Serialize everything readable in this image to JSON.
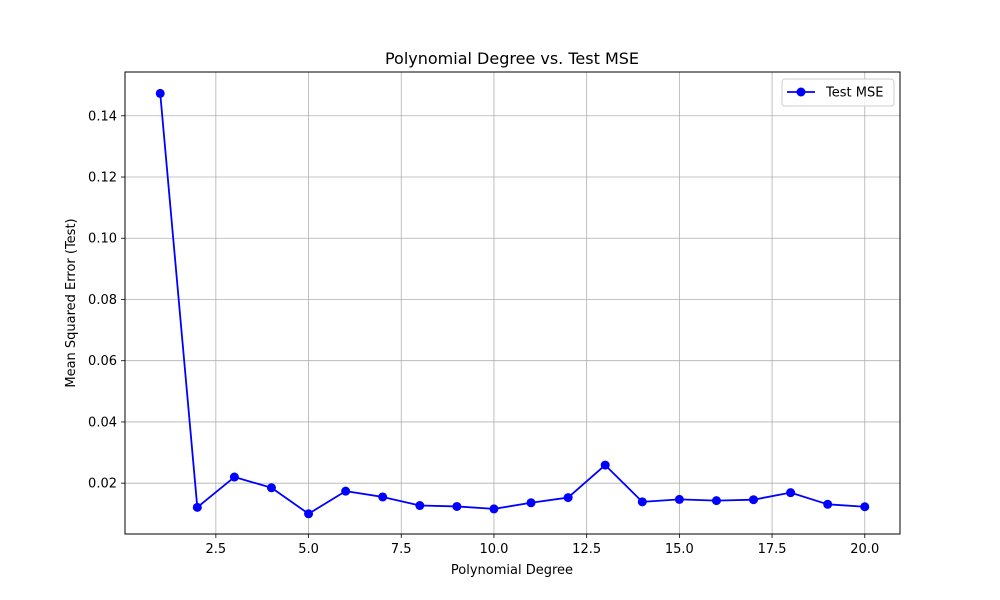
{
  "chart_data": {
    "type": "line",
    "title": "Polynomial Degree vs. Test MSE",
    "xlabel": "Polynomial Degree",
    "ylabel": "Mean Squared Error (Test)",
    "xlim": [
      0.05,
      20.95
    ],
    "ylim": [
      0.0034,
      0.1543
    ],
    "xticks": [
      2.5,
      5.0,
      7.5,
      10.0,
      12.5,
      15.0,
      17.5,
      20.0
    ],
    "xtick_labels": [
      "2.5",
      "5.0",
      "7.5",
      "10.0",
      "12.5",
      "15.0",
      "17.5",
      "20.0"
    ],
    "yticks": [
      0.02,
      0.04,
      0.06,
      0.08,
      0.1,
      0.12,
      0.14
    ],
    "ytick_labels": [
      "0.02",
      "0.04",
      "0.06",
      "0.08",
      "0.10",
      "0.12",
      "0.14"
    ],
    "grid": true,
    "legend_position": "top-right",
    "series": [
      {
        "name": "Test MSE",
        "color": "#0000ff",
        "marker": "circle",
        "x": [
          1,
          2,
          3,
          4,
          5,
          6,
          7,
          8,
          9,
          10,
          11,
          12,
          13,
          14,
          15,
          16,
          17,
          18,
          19,
          20
        ],
        "y": [
          0.1473,
          0.0121,
          0.022,
          0.0185,
          0.01,
          0.0174,
          0.0155,
          0.0127,
          0.0124,
          0.0116,
          0.0136,
          0.0153,
          0.0259,
          0.0139,
          0.0147,
          0.0143,
          0.0146,
          0.0169,
          0.0131,
          0.0123
        ]
      }
    ]
  }
}
